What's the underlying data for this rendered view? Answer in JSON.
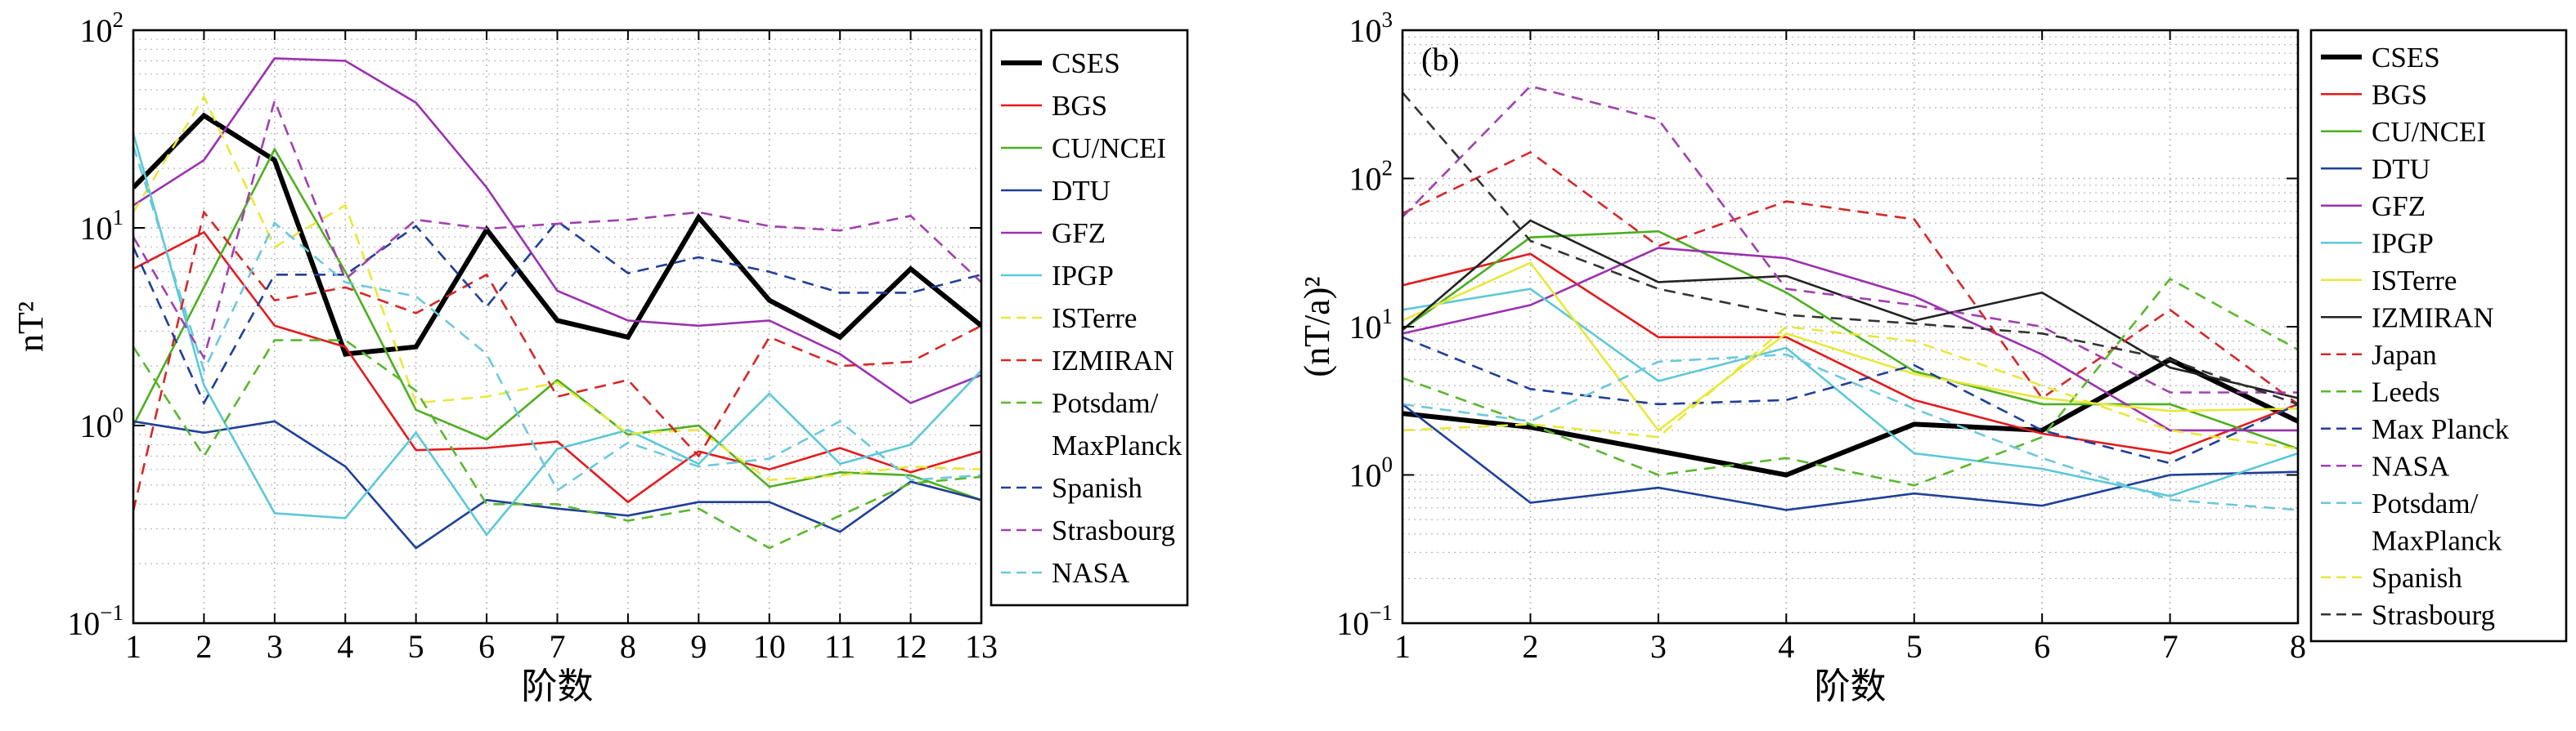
{
  "chart_data": [
    {
      "type": "line",
      "panel_label": "",
      "xlabel": "阶数",
      "ylabel": "nT²",
      "yscale": "log",
      "x": [
        1,
        2,
        3,
        4,
        5,
        6,
        7,
        8,
        9,
        10,
        11,
        12,
        13
      ],
      "xlim": [
        1,
        13
      ],
      "ylim": [
        0.1,
        100
      ],
      "xticks": [
        "1",
        "2",
        "3",
        "4",
        "5",
        "6",
        "7",
        "8",
        "9",
        "10",
        "11",
        "12",
        "13"
      ],
      "yticks": [
        {
          "base": "10",
          "exp": "2",
          "value": 100
        },
        {
          "base": "10",
          "exp": "1",
          "value": 10
        },
        {
          "base": "10",
          "exp": "0",
          "value": 1
        },
        {
          "base": "10",
          "exp": "−1",
          "value": 0.1
        }
      ],
      "grid": true,
      "legend_position": "right-outside",
      "series": [
        {
          "name": "CSES",
          "color": "#000000",
          "dash": "solid",
          "bold": true,
          "values": [
            16,
            37,
            22,
            2.3,
            2.5,
            9.8,
            3.4,
            2.8,
            11.3,
            4.3,
            2.8,
            6.2,
            3.2
          ]
        },
        {
          "name": "BGS",
          "color": "#e41a1c",
          "dash": "solid",
          "values": [
            6.2,
            9.5,
            3.2,
            2.5,
            0.75,
            0.77,
            0.83,
            0.41,
            0.74,
            0.6,
            0.77,
            0.58,
            0.74
          ]
        },
        {
          "name": "CU/NCEI",
          "color": "#4daf1f",
          "dash": "solid",
          "values": [
            1.0,
            5.0,
            25,
            6.0,
            1.2,
            0.85,
            1.7,
            0.9,
            1.0,
            0.49,
            0.58,
            0.56,
            0.42
          ]
        },
        {
          "name": "DTU",
          "color": "#1f3f99",
          "dash": "solid",
          "values": [
            1.05,
            0.92,
            1.05,
            0.62,
            0.24,
            0.42,
            0.38,
            0.35,
            0.41,
            0.41,
            0.29,
            0.52,
            0.42
          ]
        },
        {
          "name": "GFZ",
          "color": "#9b30b0",
          "dash": "solid",
          "values": [
            13,
            22,
            72,
            70,
            43,
            16,
            4.8,
            3.4,
            3.2,
            3.4,
            2.3,
            1.3,
            1.8
          ]
        },
        {
          "name": "IPGP",
          "color": "#5bc8d8",
          "dash": "solid",
          "values": [
            30,
            1.6,
            0.36,
            0.34,
            0.92,
            0.28,
            0.76,
            0.95,
            0.64,
            1.45,
            0.64,
            0.8,
            1.9
          ]
        },
        {
          "name": "ISTerre",
          "color": "#e8e83a",
          "dash": "dash",
          "values": [
            12,
            46,
            8.0,
            13,
            1.3,
            1.4,
            1.65,
            0.91,
            0.95,
            0.53,
            0.56,
            0.62,
            0.6
          ]
        },
        {
          "name": "IZMIRAN",
          "color": "#d62728",
          "dash": "dash",
          "values": [
            0.37,
            12,
            4.3,
            5.0,
            3.7,
            5.8,
            1.4,
            1.7,
            0.7,
            2.8,
            2.0,
            2.1,
            3.2
          ]
        },
        {
          "name": "Potsdam/\nMaxPlanck",
          "color": "#5ab82e",
          "dash": "dash",
          "values": [
            2.5,
            0.7,
            2.7,
            2.7,
            1.5,
            0.4,
            0.4,
            0.33,
            0.38,
            0.24,
            0.35,
            0.51,
            0.55
          ]
        },
        {
          "name": "Spanish",
          "color": "#1f3f99",
          "dash": "dash",
          "values": [
            8.0,
            1.3,
            5.8,
            5.8,
            10.2,
            4.0,
            10.8,
            5.9,
            7.1,
            6.0,
            4.7,
            4.7,
            5.8
          ]
        },
        {
          "name": "Strasbourg",
          "color": "#a040b0",
          "dash": "dash",
          "values": [
            9.0,
            2.2,
            44,
            5.5,
            11,
            9.9,
            10.5,
            11,
            12,
            10.2,
            9.7,
            11.5,
            5.3
          ]
        },
        {
          "name": "NASA",
          "color": "#6cc8dc",
          "dash": "dash",
          "values": [
            26,
            1.9,
            10.6,
            5.3,
            4.5,
            2.3,
            0.47,
            0.82,
            0.62,
            0.68,
            1.05,
            0.53,
            0.56
          ]
        }
      ]
    },
    {
      "type": "line",
      "panel_label": "(b)",
      "xlabel": "阶数",
      "ylabel": "(nT/a)²",
      "yscale": "log",
      "x": [
        1,
        2,
        3,
        4,
        5,
        6,
        7,
        8
      ],
      "xlim": [
        1,
        8
      ],
      "ylim": [
        0.1,
        1000
      ],
      "xticks": [
        "1",
        "2",
        "3",
        "4",
        "5",
        "6",
        "7",
        "8"
      ],
      "yticks": [
        {
          "base": "10",
          "exp": "3",
          "value": 1000
        },
        {
          "base": "10",
          "exp": "2",
          "value": 100
        },
        {
          "base": "10",
          "exp": "1",
          "value": 10
        },
        {
          "base": "10",
          "exp": "0",
          "value": 1
        },
        {
          "base": "10",
          "exp": "−1",
          "value": 0.1
        }
      ],
      "grid": true,
      "legend_position": "right-outside",
      "series": [
        {
          "name": "CSES",
          "color": "#000000",
          "dash": "solid",
          "bold": true,
          "values": [
            2.6,
            2.1,
            1.45,
            1.0,
            2.2,
            2.0,
            6.0,
            2.3
          ]
        },
        {
          "name": "BGS",
          "color": "#e41a1c",
          "dash": "solid",
          "values": [
            19,
            31,
            8.5,
            8.5,
            3.2,
            1.9,
            1.4,
            3.0
          ]
        },
        {
          "name": "CU/NCEI",
          "color": "#4daf1f",
          "dash": "solid",
          "values": [
            9.5,
            40,
            44,
            17,
            5.0,
            3.0,
            3.0,
            1.5
          ]
        },
        {
          "name": "DTU",
          "color": "#1f3f99",
          "dash": "solid",
          "values": [
            3.0,
            0.65,
            0.82,
            0.58,
            0.75,
            0.62,
            1.0,
            1.05
          ]
        },
        {
          "name": "GFZ",
          "color": "#9b30b0",
          "dash": "solid",
          "values": [
            9.0,
            14,
            34,
            29,
            16,
            6.5,
            2.0,
            2.0
          ]
        },
        {
          "name": "IPGP",
          "color": "#5bc8d8",
          "dash": "solid",
          "values": [
            13,
            18,
            4.3,
            7.2,
            1.4,
            1.1,
            0.72,
            1.4
          ]
        },
        {
          "name": "ISTerre",
          "color": "#e8e83a",
          "dash": "solid",
          "values": [
            11,
            27,
            2.0,
            9.0,
            4.8,
            3.3,
            2.7,
            2.8
          ]
        },
        {
          "name": "IZMIRAN",
          "color": "#222222",
          "dash": "solid",
          "values": [
            9.5,
            52,
            20,
            22,
            11,
            17,
            5.3,
            3.3
          ]
        },
        {
          "name": "Japan",
          "color": "#d62728",
          "dash": "dash",
          "values": [
            58,
            150,
            35,
            70,
            53,
            3.3,
            13,
            3.0
          ]
        },
        {
          "name": "Leeds",
          "color": "#5ab82e",
          "dash": "dash",
          "values": [
            4.5,
            2.2,
            1.0,
            1.3,
            0.85,
            1.8,
            21,
            7.0
          ]
        },
        {
          "name": "Max Planck",
          "color": "#1f3f99",
          "dash": "dash",
          "values": [
            8.5,
            3.8,
            3.0,
            3.2,
            5.5,
            2.0,
            1.2,
            3.0
          ]
        },
        {
          "name": "NASA",
          "color": "#a040b0",
          "dash": "dash",
          "values": [
            55,
            420,
            250,
            18,
            14,
            10,
            3.6,
            3.6
          ]
        },
        {
          "name": "Potsdam/\nMaxPlanck",
          "color": "#6cc8dc",
          "dash": "dash",
          "values": [
            3.0,
            2.3,
            5.8,
            6.5,
            2.8,
            1.3,
            0.68,
            0.58
          ]
        },
        {
          "name": "Spanish",
          "color": "#e8e83a",
          "dash": "dash",
          "values": [
            2.0,
            2.2,
            1.8,
            10,
            8.0,
            4.0,
            2.0,
            1.5
          ]
        },
        {
          "name": "Strasbourg",
          "color": "#333333",
          "dash": "dash",
          "values": [
            380,
            38,
            18,
            12,
            10.5,
            9.0,
            6.0,
            3.0
          ]
        }
      ]
    }
  ]
}
